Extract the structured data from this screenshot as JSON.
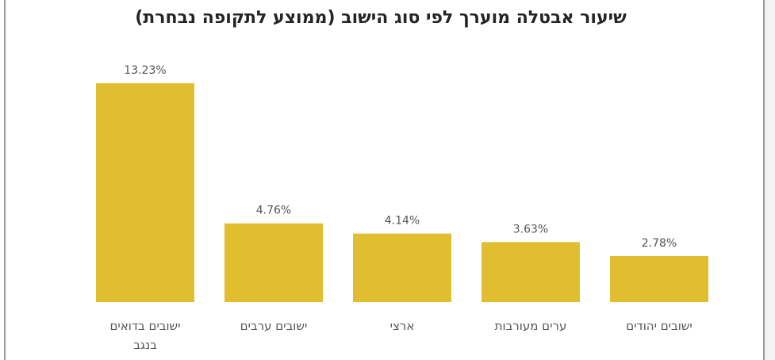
{
  "chart_data": {
    "type": "bar",
    "title": "שיעור אבטלה מוערך לפי סוג הישוב (ממוצע לתקופה נבחרת)",
    "categories": [
      [
        "ישובים בדואים",
        "בנגב"
      ],
      [
        "ישובים ערבים"
      ],
      [
        "ארצי"
      ],
      [
        "ערים מעורבות"
      ],
      [
        "ישובים יהודים"
      ]
    ],
    "values": [
      13.23,
      4.76,
      4.14,
      3.63,
      2.78
    ],
    "value_labels": [
      "13.23%",
      "4.76%",
      "4.14%",
      "3.63%",
      "2.78%"
    ],
    "ylim": [
      0,
      13.23
    ],
    "grid": false,
    "bar_color": "#E1BE2F"
  }
}
